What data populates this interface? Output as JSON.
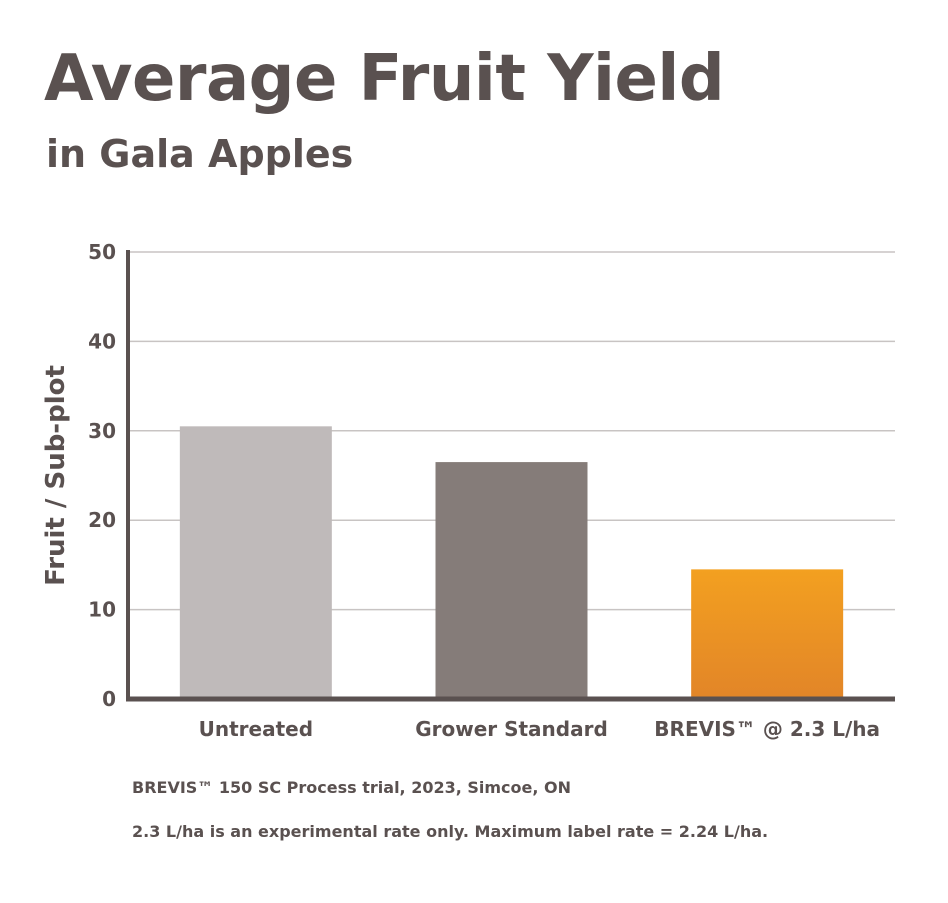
{
  "header": {
    "title": "Average Fruit Yield",
    "subtitle": "in Gala Apples"
  },
  "footnotes": [
    "BREVIS™ 150 SC Process trial, 2023, Simcoe, ON",
    "2.3 L/ha is an experimental rate only. Maximum label rate = 2.24 L/ha."
  ],
  "colors": {
    "text": "#5a5150",
    "axis": "#5a5150",
    "grid": "#c8c4c3",
    "untreated": "#bfbaba",
    "grower_standard": "#857c79",
    "brevis_top": "#f3a020",
    "brevis_bottom": "#e28528"
  },
  "chart_data": {
    "type": "bar",
    "title": "Average Fruit Yield",
    "subtitle": "in Gala Apples",
    "xlabel": "",
    "ylabel": "Fruit / Sub-plot",
    "categories": [
      "Untreated",
      "Grower Standard",
      "BREVIS™ @ 2.3 L/ha"
    ],
    "values": [
      30.5,
      26.5,
      14.5
    ],
    "ylim": [
      0,
      50
    ],
    "yticks": [
      0,
      10,
      20,
      30,
      40,
      50
    ],
    "grid": true,
    "legend": "none"
  }
}
